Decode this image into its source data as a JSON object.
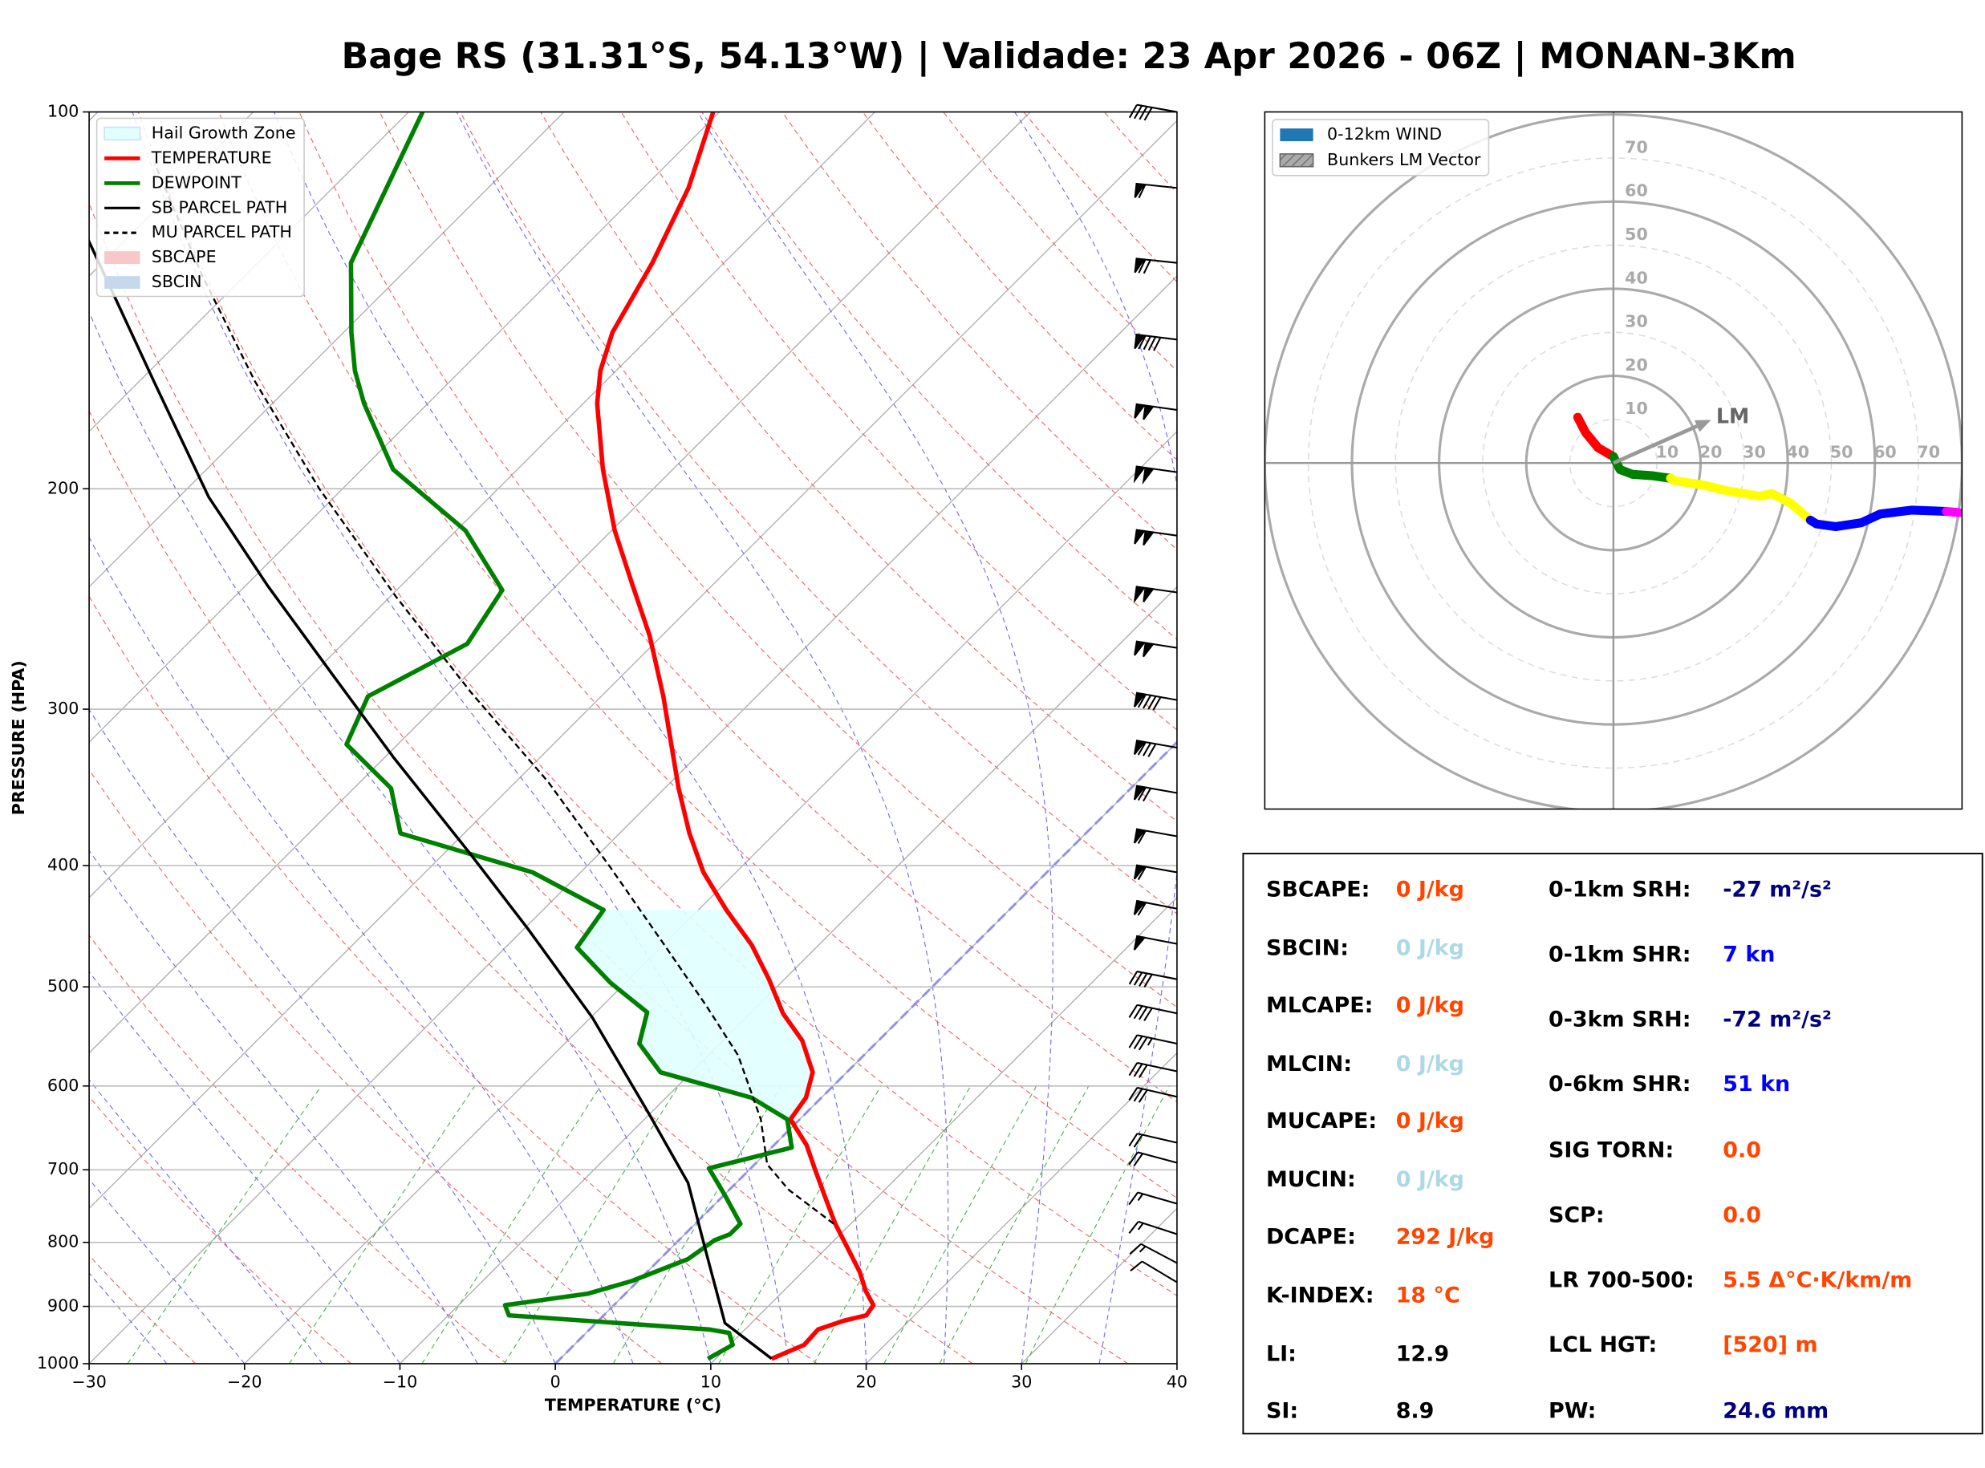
{
  "title": "Bage RS (31.31°S, 54.13°W) | Validade: 23 Apr 2026 - 06Z | MONAN-3Km",
  "chart_data": [
    {
      "type": "skewt",
      "xlabel": "TEMPERATURE (°C)",
      "ylabel": "PRESSURE (HPA)",
      "xlim": [
        -30,
        40
      ],
      "ylim": [
        1000,
        100
      ],
      "log_scale_y": true,
      "grid": true,
      "xticks": [
        {
          "value": -30,
          "label": "−30"
        },
        {
          "value": -20,
          "label": "−20"
        },
        {
          "value": -10,
          "label": "−10"
        },
        0,
        10,
        20,
        30,
        40
      ],
      "yticks": [
        100,
        200,
        300,
        400,
        500,
        600,
        700,
        800,
        900,
        1000
      ],
      "legend": "upper left",
      "hail_growth_zone": {
        "name": "Hail Growth Zone",
        "color": "#e0ffff",
        "p_bottom": 638,
        "p_top": 434
      },
      "series": [
        {
          "name": "TEMPERATURE",
          "color": "#ff0000",
          "pressure": [
            991,
            966,
            939,
            924,
            915,
            898,
            875,
            845,
            812,
            773,
            734,
            698,
            669,
            638,
            613,
            585,
            552,
            525,
            493,
            463,
            434,
            405,
            377,
            347,
            324,
            293,
            262,
            239,
            216,
            193,
            171,
            161,
            150,
            132,
            115,
            100
          ],
          "values": [
            13.6,
            14.8,
            14.7,
            15.8,
            16.9,
            16.7,
            15.3,
            13.7,
            11.6,
            9.0,
            6.5,
            4.1,
            2.1,
            -0.6,
            -1.0,
            -2.2,
            -4.9,
            -7.9,
            -11.0,
            -14.3,
            -18.2,
            -22.1,
            -25.5,
            -29.1,
            -31.9,
            -36.0,
            -40.8,
            -45.1,
            -49.8,
            -54.5,
            -59.1,
            -61.0,
            -62.7,
            -64.6,
            -67.1,
            -70.4
          ]
        },
        {
          "name": "DEWPOINT",
          "color": "#008000",
          "pressure": [
            991,
            966,
            945,
            939,
            915,
            898,
            879,
            859,
            825,
            797,
            788,
            773,
            734,
            698,
            672,
            638,
            613,
            585,
            555,
            524,
            496,
            465,
            434,
            405,
            377,
            347,
            320,
            293,
            266,
            241,
            216,
            193,
            171,
            161,
            150,
            132,
            100
          ],
          "values": [
            9.5,
            10.2,
            9.2,
            7.7,
            -6.1,
            -7.0,
            -2.4,
            -0.4,
            1.8,
            2.3,
            2.9,
            2.9,
            0.1,
            -2.7,
            1.3,
            -0.8,
            -4.5,
            -12.0,
            -15.2,
            -16.7,
            -21.0,
            -25.4,
            -26.1,
            -33.1,
            -44.1,
            -47.6,
            -53.3,
            -55.0,
            -52.0,
            -53.2,
            -59.4,
            -68.0,
            -74.1,
            -76.8,
            -79.5,
            -84.0,
            -89.1
          ]
        },
        {
          "name": "SB PARCEL PATH",
          "color": "#000000",
          "dash": false,
          "pressure": [
            991,
            928,
            816,
            717,
            631,
            529,
            449,
            392,
            328,
            281,
            239,
            203,
            164,
            126
          ],
          "values": [
            13.6,
            8.3,
            2.6,
            -3.1,
            -10.1,
            -19.9,
            -29.8,
            -38.2,
            -49.4,
            -58.8,
            -68.6,
            -78.1,
            -89.1,
            -102.6
          ]
        },
        {
          "name": "MU PARCEL PATH",
          "color": "#000000",
          "dash": true,
          "pressure": [
            773,
            726,
            693,
            638,
            567,
            517,
            460,
            402,
            343,
            291,
            244,
            200,
            164,
            135,
            110
          ],
          "values": [
            8.9,
            3.8,
            0.8,
            -2.5,
            -8.1,
            -13.4,
            -20.3,
            -28.3,
            -37.9,
            -48.6,
            -59.6,
            -71.5,
            -82.6,
            -92.8,
            -103.0
          ]
        }
      ],
      "legend_patches": [
        {
          "name": "SBCAPE",
          "color": "#f8c8c8"
        },
        {
          "name": "SBCIN",
          "color": "#c6d9ec"
        }
      ],
      "wind_barbs": {
        "pressure": [
          100,
          115,
          132,
          152,
          173,
          194,
          218,
          242,
          268,
          295,
          322,
          350,
          379,
          405,
          433,
          462,
          493,
          525,
          555,
          584,
          612,
          666,
          691,
          745,
          788,
          831,
          861
        ],
        "speed": [
          40,
          60,
          70,
          90,
          100,
          100,
          100,
          100,
          100,
          90,
          80,
          70,
          60,
          60,
          60,
          50,
          40,
          40,
          35,
          30,
          30,
          20,
          20,
          15,
          15,
          15,
          10
        ],
        "direction": [
          280,
          276,
          276,
          277,
          278,
          278,
          278,
          278,
          279,
          280,
          280,
          280,
          280,
          280,
          281,
          281,
          281,
          282,
          282,
          282,
          283,
          283,
          285,
          286,
          288,
          298,
          301
        ]
      }
    },
    {
      "type": "hodograph",
      "rlim": [
        0,
        80
      ],
      "rticks": [
        10,
        20,
        30,
        40,
        50,
        60,
        70
      ],
      "legend": [
        {
          "name": "0-12km WIND",
          "color": "#1f77b4"
        }
      ],
      "series": [
        {
          "color": "#ff0000",
          "u": [
            -8.2,
            -6.4,
            -3.5,
            0
          ],
          "v": [
            10.5,
            7.0,
            3.5,
            1.5
          ]
        },
        {
          "color": "#008000",
          "u": [
            0,
            1.5,
            4.4,
            8.7,
            13.1
          ],
          "v": [
            1.5,
            -1.5,
            -2.6,
            -2.9,
            -3.5
          ]
        },
        {
          "color": "#ffff00",
          "u": [
            13.1,
            14.0,
            20.4,
            26.2,
            33.5,
            36.4,
            40.8,
            45.2
          ],
          "v": [
            -3.5,
            -4.1,
            -5.0,
            -6.4,
            -7.6,
            -7.0,
            -9.3,
            -13.1
          ]
        },
        {
          "color": "#0000ff",
          "u": [
            45.2,
            46.6,
            51.0,
            56.9,
            61.2,
            68.5,
            76.4
          ],
          "v": [
            -13.1,
            -14.0,
            -14.6,
            -13.7,
            -11.7,
            -10.8,
            -11.1
          ]
        },
        {
          "color": "#ff00ff",
          "u": [
            76.4,
            79.3
          ],
          "v": [
            -11.1,
            -11.4
          ]
        }
      ],
      "bunkers_lm": {
        "name": "Bunkers LM Vector",
        "label": "LM",
        "color": "#999999",
        "u": 22.4,
        "v": 9.9
      }
    }
  ],
  "indices": {
    "left": [
      {
        "label": "SBCAPE:",
        "value": "0 J/kg",
        "color": "#ff4500"
      },
      {
        "label": "SBCIN:",
        "value": "0 J/kg",
        "color": "#add8e6"
      },
      {
        "label": "MLCAPE:",
        "value": "0 J/kg",
        "color": "#ff4500"
      },
      {
        "label": "MLCIN:",
        "value": "0 J/kg",
        "color": "#add8e6"
      },
      {
        "label": "MUCAPE:",
        "value": "0 J/kg",
        "color": "#ff4500"
      },
      {
        "label": "MUCIN:",
        "value": "0 J/kg",
        "color": "#add8e6"
      },
      {
        "label": "DCAPE:",
        "value": "292 J/kg",
        "color": "#ff4500"
      },
      {
        "label": "K-INDEX:",
        "value": "18 °C",
        "color": "#ff4500"
      },
      {
        "label": "LI:",
        "value": "12.9",
        "color": "#000000"
      },
      {
        "label": "SI:",
        "value": "8.9",
        "color": "#000000"
      }
    ],
    "right": [
      {
        "label": "0-1km SRH:",
        "value": "-27 m²/s²",
        "color": "#000080"
      },
      {
        "label": "0-1km SHR:",
        "value": "7 kn",
        "color": "#0000ff"
      },
      {
        "label": "0-3km SRH:",
        "value": "-72 m²/s²",
        "color": "#000080"
      },
      {
        "label": "0-6km SHR:",
        "value": "51 kn",
        "color": "#0000ff"
      },
      {
        "label": "SIG TORN:",
        "value": "0.0",
        "color": "#ff4500"
      },
      {
        "label": "SCP:",
        "value": "0.0",
        "color": "#ff4500"
      },
      {
        "label": "LR 700-500:",
        "value": "5.5 Δ°C·K/km/m",
        "color": "#ff4500"
      },
      {
        "label": "LCL HGT:",
        "value": "[520] m",
        "color": "#ff4500"
      },
      {
        "label": "PW:",
        "value": "24.6 mm",
        "color": "#000080"
      }
    ]
  }
}
